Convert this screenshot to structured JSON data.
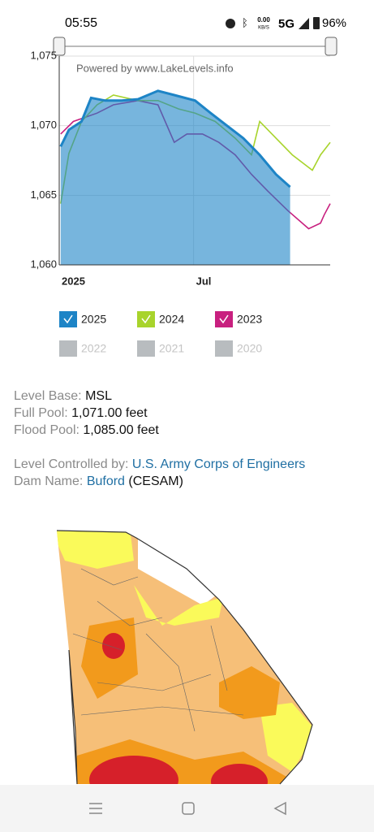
{
  "status_bar": {
    "time": "05:55",
    "net_speed": "0.00",
    "net_unit": "KB/S",
    "network": "5G",
    "battery": "96%"
  },
  "chart_data": {
    "type": "line",
    "annotation": "Powered by www.LakeLevels.info",
    "xlim": [
      0,
      365
    ],
    "xticks": [
      {
        "value": 0,
        "label": "2025"
      },
      {
        "value": 181,
        "label": "Jul"
      }
    ],
    "ylim": [
      1060,
      1075
    ],
    "yticks": [
      {
        "value": 1060,
        "label": "1,060"
      },
      {
        "value": 1065,
        "label": "1,065"
      },
      {
        "value": 1070,
        "label": "1,070"
      },
      {
        "value": 1075,
        "label": "1,075"
      }
    ],
    "grid": true,
    "series": [
      {
        "name": "2025",
        "color": "#1d84c6",
        "fill": true,
        "x": [
          2,
          13,
          30,
          43,
          62,
          84,
          106,
          133,
          155,
          183,
          204,
          226,
          248,
          270,
          292,
          311
        ],
        "values": [
          1068.5,
          1069.7,
          1070.3,
          1072.0,
          1071.8,
          1071.8,
          1071.9,
          1072.5,
          1072.2,
          1071.8,
          1070.9,
          1070.0,
          1069.1,
          1067.9,
          1066.5,
          1065.6
        ]
      },
      {
        "name": "2024",
        "color": "#a8d42c",
        "fill": false,
        "x": [
          2,
          13,
          30,
          51,
          73,
          106,
          133,
          161,
          183,
          210,
          237,
          259,
          270,
          292,
          314,
          341,
          352,
          365
        ],
        "values": [
          1064.4,
          1068.0,
          1070.3,
          1071.5,
          1072.2,
          1071.8,
          1071.8,
          1071.2,
          1070.9,
          1070.3,
          1069.1,
          1067.9,
          1070.3,
          1069.1,
          1067.9,
          1066.8,
          1067.9,
          1068.8
        ]
      },
      {
        "name": "2023",
        "color": "#c8207f",
        "fill": false,
        "x": [
          2,
          19,
          35,
          51,
          73,
          106,
          133,
          155,
          172,
          193,
          215,
          237,
          259,
          281,
          308,
          336,
          352,
          357,
          365
        ],
        "values": [
          1069.4,
          1070.3,
          1070.6,
          1070.9,
          1071.5,
          1071.8,
          1071.5,
          1068.8,
          1069.4,
          1069.4,
          1068.8,
          1067.9,
          1066.5,
          1065.3,
          1063.9,
          1062.6,
          1063.0,
          1063.6,
          1064.4
        ]
      }
    ],
    "legend_inactive": [
      "2022",
      "2021",
      "2020"
    ]
  },
  "info": {
    "level_base": {
      "label": "Level Base:",
      "value": "MSL"
    },
    "full_pool": {
      "label": "Full Pool:",
      "value": "1,071.00 feet"
    },
    "flood_pool": {
      "label": "Flood Pool:",
      "value": "1,085.00 feet"
    },
    "controlled_by": {
      "label": "Level Controlled by:",
      "value": "U.S. Army Corps of Engineers"
    },
    "dam_name": {
      "label": "Dam Name:",
      "value": "Buford",
      "suffix": "(CESAM)"
    }
  }
}
